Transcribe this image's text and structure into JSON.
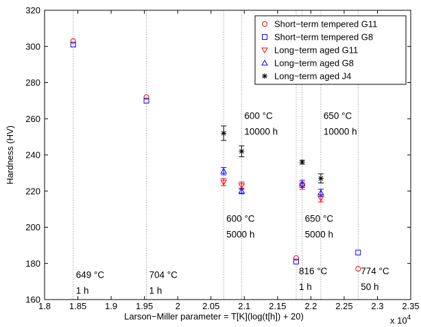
{
  "chart_data": {
    "type": "scatter",
    "xlabel": "Larson−Miller parameter = T[K](log(t[h]) + 20)",
    "ylabel": "Hardness (HV)",
    "x_multiplier": "x 10",
    "x_multiplier_exp": "4",
    "xlim": [
      1.8,
      2.35
    ],
    "ylim": [
      160,
      320
    ],
    "xticks": [
      "1.8",
      "1.85",
      "1.9",
      "1.95",
      "2",
      "2.05",
      "2.1",
      "2.15",
      "2.2",
      "2.25",
      "2.3",
      "2.35"
    ],
    "yticks": [
      "160",
      "180",
      "200",
      "220",
      "240",
      "260",
      "280",
      "300",
      "320"
    ],
    "grid": false,
    "legend_position": "top-right",
    "vlines": [
      1.843,
      1.953,
      2.069,
      2.096,
      2.178,
      2.187,
      2.215,
      2.271
    ],
    "series": [
      {
        "name": "Short−term tempered G11",
        "marker": "circle",
        "color": "#ff0000",
        "points": [
          {
            "x": 1.843,
            "y": 303
          },
          {
            "x": 1.953,
            "y": 272
          },
          {
            "x": 2.178,
            "y": 183
          },
          {
            "x": 2.271,
            "y": 177
          }
        ]
      },
      {
        "name": "Short−term tempered G8",
        "marker": "square",
        "color": "#0000ff",
        "points": [
          {
            "x": 1.843,
            "y": 301
          },
          {
            "x": 1.953,
            "y": 270
          },
          {
            "x": 2.178,
            "y": 181
          },
          {
            "x": 2.271,
            "y": 186
          }
        ]
      },
      {
        "name": "Long−term aged G11",
        "marker": "triangle-down",
        "color": "#ff0000",
        "points": [
          {
            "x": 2.069,
            "y": 225,
            "err": 2
          },
          {
            "x": 2.096,
            "y": 223,
            "err": 2
          },
          {
            "x": 2.187,
            "y": 223,
            "err": 2
          },
          {
            "x": 2.215,
            "y": 216,
            "err": 2
          }
        ]
      },
      {
        "name": "Long−term aged G8",
        "marker": "triangle-up",
        "color": "#0000ff",
        "points": [
          {
            "x": 2.069,
            "y": 231,
            "err": 2
          },
          {
            "x": 2.096,
            "y": 220,
            "err": 1.5
          },
          {
            "x": 2.187,
            "y": 224,
            "err": 2
          },
          {
            "x": 2.215,
            "y": 219,
            "err": 2
          }
        ]
      },
      {
        "name": "Long−term aged J4",
        "marker": "star",
        "color": "#000000",
        "points": [
          {
            "x": 2.069,
            "y": 252,
            "err": 4
          },
          {
            "x": 2.096,
            "y": 242,
            "err": 3
          },
          {
            "x": 2.187,
            "y": 236,
            "err": 1
          },
          {
            "x": 2.215,
            "y": 227,
            "err": 2.5
          }
        ]
      }
    ],
    "annotations": [
      {
        "lines": [
          "649 °C",
          "1 h"
        ],
        "x": 1.845,
        "y": 172
      },
      {
        "lines": [
          "704 °C",
          "1 h"
        ],
        "x": 1.955,
        "y": 172
      },
      {
        "lines": [
          "600 °C",
          "10000 h"
        ],
        "x": 2.098,
        "y": 260
      },
      {
        "lines": [
          "650 °C",
          "10000 h"
        ],
        "x": 2.217,
        "y": 260
      },
      {
        "lines": [
          "600 °C",
          "5000 h"
        ],
        "x": 2.071,
        "y": 203
      },
      {
        "lines": [
          "650 °C",
          "5000 h"
        ],
        "x": 2.189,
        "y": 203
      },
      {
        "lines": [
          "816 °C",
          "1 h"
        ],
        "x": 2.18,
        "y": 174
      },
      {
        "lines": [
          "774 °C",
          "50 h"
        ],
        "x": 2.273,
        "y": 174
      }
    ]
  }
}
